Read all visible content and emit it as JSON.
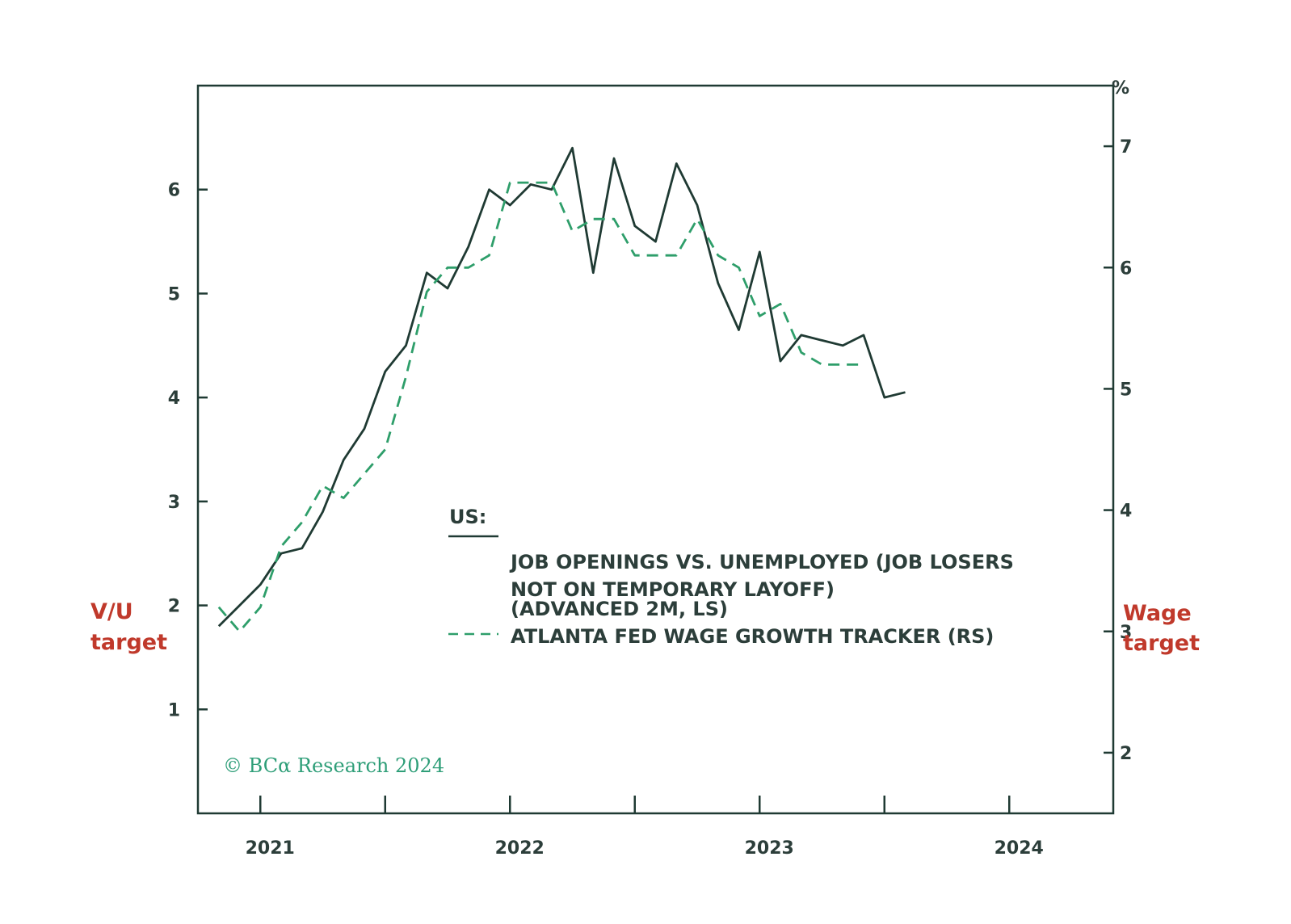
{
  "chart_data": {
    "type": "line",
    "legend_title": "US:",
    "legend_placement": "center-right",
    "left_axis": {
      "ylim": [
        0,
        7
      ],
      "ticks": [
        1,
        2,
        3,
        4,
        5,
        6
      ],
      "target_label": [
        "V/U",
        "target"
      ]
    },
    "right_axis": {
      "unit": "%",
      "ylim": [
        1.5,
        7.5
      ],
      "ticks": [
        2,
        3,
        4,
        5,
        6,
        7
      ],
      "target_label": [
        "Wage",
        "target"
      ]
    },
    "x_axis": {
      "xlim": [
        "2020-10",
        "2024-06"
      ],
      "ticks": [
        "2021",
        "2022",
        "2023",
        "2024"
      ]
    },
    "grid": false,
    "series": [
      {
        "name": [
          "JOB OPENINGS VS. UNEMPLOYED (JOB LOSERS",
          "NOT ON TEMPORARY LAYOFF)",
          "(ADVANCED 2M, LS)"
        ],
        "axis": "left",
        "style": "solid",
        "color": "#1f3a33",
        "x": [
          "2020-11",
          "2020-12",
          "2021-01",
          "2021-02",
          "2021-03",
          "2021-04",
          "2021-05",
          "2021-06",
          "2021-07",
          "2021-08",
          "2021-09",
          "2021-10",
          "2021-11",
          "2021-12",
          "2022-01",
          "2022-02",
          "2022-03",
          "2022-04",
          "2022-05",
          "2022-06",
          "2022-07",
          "2022-08",
          "2022-09",
          "2022-10",
          "2022-11",
          "2022-12",
          "2023-01",
          "2023-02",
          "2023-03",
          "2023-04",
          "2023-05",
          "2023-06",
          "2023-07",
          "2023-08"
        ],
        "values": [
          1.8,
          2.0,
          2.2,
          2.5,
          2.55,
          2.9,
          3.4,
          3.7,
          4.25,
          4.5,
          5.2,
          5.05,
          5.45,
          6.0,
          5.85,
          6.05,
          6.0,
          6.4,
          5.2,
          6.3,
          5.65,
          5.5,
          6.25,
          5.85,
          5.1,
          4.65,
          5.4,
          4.35,
          4.6,
          4.55,
          4.5,
          4.6,
          4.0,
          4.05
        ]
      },
      {
        "name": [
          "ATLANTA FED WAGE GROWTH TRACKER (RS)"
        ],
        "axis": "right",
        "style": "dashed",
        "color": "#2e9e6a",
        "x": [
          "2020-11",
          "2020-12",
          "2021-01",
          "2021-02",
          "2021-03",
          "2021-04",
          "2021-05",
          "2021-06",
          "2021-07",
          "2021-08",
          "2021-09",
          "2021-10",
          "2021-11",
          "2021-12",
          "2022-01",
          "2022-02",
          "2022-03",
          "2022-04",
          "2022-05",
          "2022-06",
          "2022-07",
          "2022-08",
          "2022-09",
          "2022-10",
          "2022-11",
          "2022-12",
          "2023-01",
          "2023-02",
          "2023-03",
          "2023-04",
          "2023-05",
          "2023-06"
        ],
        "values": [
          3.2,
          3.0,
          3.2,
          3.7,
          3.9,
          4.2,
          4.1,
          4.3,
          4.5,
          5.1,
          5.8,
          6.0,
          6.0,
          6.1,
          6.7,
          6.7,
          6.7,
          6.3,
          6.4,
          6.4,
          6.1,
          6.1,
          6.1,
          6.4,
          6.1,
          6.0,
          5.6,
          5.7,
          5.3,
          5.2,
          5.2,
          5.2
        ]
      }
    ]
  },
  "copyright": "© BCα Research 2024"
}
